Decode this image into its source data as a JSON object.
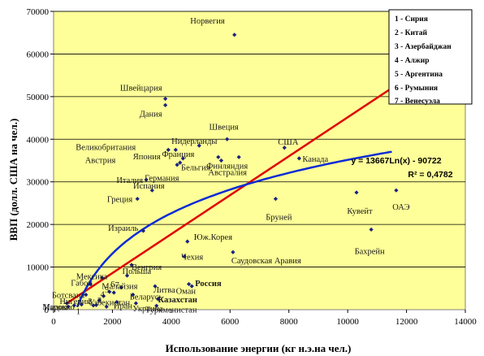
{
  "chart_data": {
    "type": "scatter",
    "xlabel": "Использование энергии (кг н.э.на чел.)",
    "ylabel": "ВВП (долл. США на чел.)",
    "xlim": [
      0,
      14000
    ],
    "ylim": [
      0,
      70000
    ],
    "xticks": [
      "0",
      "2000",
      "4000",
      "6000",
      "8000",
      "10000",
      "12000",
      "14000"
    ],
    "yticks": [
      "0",
      "10000",
      "20000",
      "30000",
      "40000",
      "50000",
      "60000",
      "70000"
    ],
    "grid": "horizontal",
    "point_color": "#1a237e",
    "plot_bg": "#ffff99",
    "points": [
      {
        "label": "Норвегия",
        "x": 6150,
        "y": 64500
      },
      {
        "label": "Швейцария",
        "x": 3800,
        "y": 49500
      },
      {
        "label": "Дания",
        "x": 3800,
        "y": 48000
      },
      {
        "label": "Швеция",
        "x": 5900,
        "y": 40000
      },
      {
        "label": "США",
        "x": 7850,
        "y": 38000
      },
      {
        "label": "Нидерланды",
        "x": 4950,
        "y": 38500
      },
      {
        "label": "Великобритания",
        "x": 3900,
        "y": 37500
      },
      {
        "label": "Австрия",
        "x": 4150,
        "y": 37500
      },
      {
        "label": "Франция",
        "x": 4400,
        "y": 35500
      },
      {
        "label": "Бельгия",
        "x": 5600,
        "y": 35800
      },
      {
        "label": "Япония",
        "x": 4300,
        "y": 34500
      },
      {
        "label": "Финляндия",
        "x": 6300,
        "y": 35800
      },
      {
        "label": "Канада",
        "x": 8350,
        "y": 35500
      },
      {
        "label": "Австралия",
        "x": 5700,
        "y": 35000
      },
      {
        "label": "Германия",
        "x": 4200,
        "y": 34000
      },
      {
        "label": "Италия",
        "x": 3150,
        "y": 30500
      },
      {
        "label": "Испания",
        "x": 3350,
        "y": 28000
      },
      {
        "label": "Греция",
        "x": 2850,
        "y": 26000
      },
      {
        "label": "Кувейт",
        "x": 10300,
        "y": 27500
      },
      {
        "label": "ОАЭ",
        "x": 11650,
        "y": 28000
      },
      {
        "label": "Бруней",
        "x": 7550,
        "y": 26000
      },
      {
        "label": "Израиль",
        "x": 3050,
        "y": 18500
      },
      {
        "label": "Бахрейн",
        "x": 10800,
        "y": 18800
      },
      {
        "label": "Юж.Корея",
        "x": 4550,
        "y": 16000
      },
      {
        "label": "Чехия",
        "x": 4450,
        "y": 12500
      },
      {
        "label": "Саудовская Аравия",
        "x": 6100,
        "y": 13500
      },
      {
        "label": "Венгрия",
        "x": 2650,
        "y": 10500
      },
      {
        "label": "Польша",
        "x": 2500,
        "y": 8000
      },
      {
        "label": "Оман",
        "x": 4600,
        "y": 6000
      },
      {
        "label": "Россия",
        "x": 4700,
        "y": 5500
      },
      {
        "label": "Литва",
        "x": 3450,
        "y": 5500
      },
      {
        "label": "Казахстан",
        "x": 3550,
        "y": 2500
      },
      {
        "label": "Мексика",
        "x": 1650,
        "y": 7500
      },
      {
        "label": "Габон",
        "x": 1250,
        "y": 6000
      },
      {
        "label": "Малайзия",
        "x": 2300,
        "y": 5200
      },
      {
        "label": "Ботсвана",
        "x": 1100,
        "y": 3500
      },
      {
        "label": "Беларусь",
        "x": 2700,
        "y": 3500
      },
      {
        "label": "Украина",
        "x": 2800,
        "y": 1500
      },
      {
        "label": "Туркменистан",
        "x": 3500,
        "y": 900
      },
      {
        "label": "Иран",
        "x": 2150,
        "y": 1800
      },
      {
        "label": "Марокко",
        "x": 450,
        "y": 1500
      },
      {
        "label": "Индия",
        "x": 500,
        "y": 700
      },
      {
        "label": "Нигерия",
        "x": 700,
        "y": 1000
      },
      {
        "label": "Узбекистан",
        "x": 1800,
        "y": 700
      },
      {
        "label": "1",
        "x": 950,
        "y": 1200
      },
      {
        "label": "2",
        "x": 1350,
        "y": 1000
      },
      {
        "label": "3",
        "x": 1450,
        "y": 1100
      },
      {
        "label": "4",
        "x": 1550,
        "y": 2200
      },
      {
        "label": "5",
        "x": 1700,
        "y": 3200
      },
      {
        "label": "6",
        "x": 1900,
        "y": 4200
      },
      {
        "label": "7",
        "x": 2050,
        "y": 4000
      }
    ],
    "trendlines": [
      {
        "type": "linear",
        "color": "#e00000",
        "x_range": [
          450,
          11500
        ],
        "y_range": [
          1500,
          52000
        ]
      },
      {
        "type": "logarithmic",
        "color": "#0a2bd6",
        "a": 13667,
        "b": -90722,
        "x_range": [
          800,
          11500
        ]
      }
    ],
    "annotations": {
      "equation": "y = 13667Ln(x) - 90722",
      "r_squared": "R² = 0,4782"
    },
    "legend": {
      "placement": "top-right",
      "items": [
        "1 - Сирия",
        "2 - Китай",
        "3 - Азербайджан",
        "4 - Алжир",
        "5 - Аргентина",
        "6 - Румыния",
        "7 - Венесуэла"
      ]
    }
  }
}
